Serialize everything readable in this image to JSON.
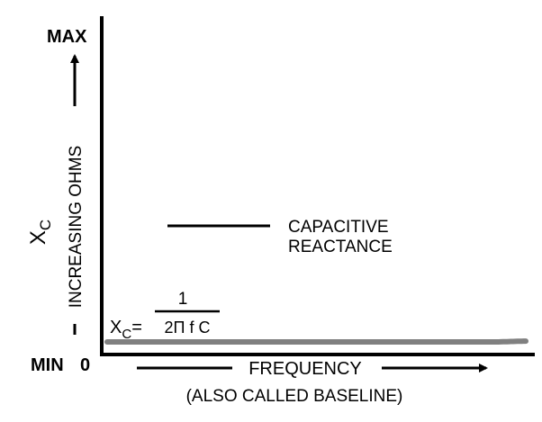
{
  "chart_data": {
    "type": "line",
    "title": "",
    "xlabel": "FREQUENCY",
    "xlabel_note": "(ALSO CALLED BASELINE)",
    "ylabel": "INCREASING OHMS",
    "y_symbol_main": "X",
    "y_symbol_sub": "C",
    "y_max_label": "MAX",
    "y_min_label": "MIN",
    "origin_label": "0",
    "curve_label_line1": "CAPACITIVE",
    "curve_label_line2": "REACTANCE",
    "formula": {
      "lhs_main": "X",
      "lhs_sub": "C",
      "equals": "=",
      "numerator": "1",
      "denominator": "2Π f C"
    },
    "relationship": "inverse",
    "grid": false,
    "series": [
      {
        "color": "#808080"
      }
    ],
    "colors": {
      "axis": "#000000",
      "curve": "#808080",
      "text": "#000000"
    }
  }
}
